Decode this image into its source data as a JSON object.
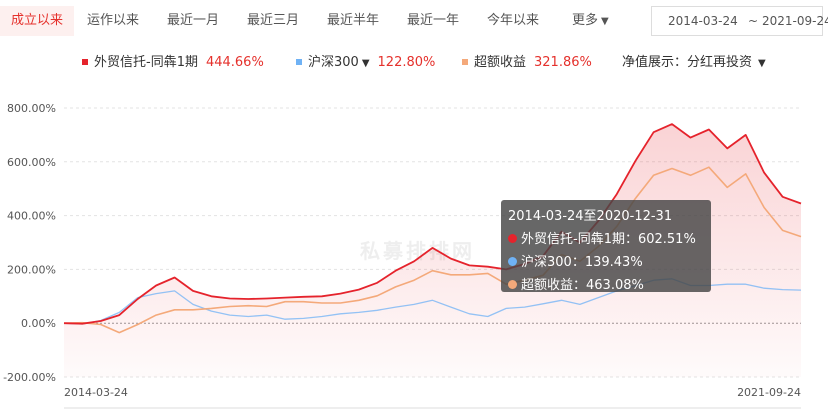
{
  "tabs": [
    {
      "label": "成立以来",
      "active": true
    },
    {
      "label": "运作以来",
      "active": false
    },
    {
      "label": "最近一月",
      "active": false
    },
    {
      "label": "最近三月",
      "active": false
    },
    {
      "label": "最近半年",
      "active": false
    },
    {
      "label": "最近一年",
      "active": false
    },
    {
      "label": "今年以来",
      "active": false
    }
  ],
  "more_label": "更多",
  "date_range": {
    "start": "2014-03-24",
    "separator": "~",
    "end": "2021-09-24"
  },
  "legend": {
    "items": [
      {
        "name": "外贸信托-同犇1期",
        "value": "444.66%",
        "color": "#e5232c",
        "value_color": "#e5312c",
        "has_dropdown": false
      },
      {
        "name": "沪深300",
        "value": "122.80%",
        "color": "#6fb2f5",
        "value_color": "#e5312c",
        "has_dropdown": true
      },
      {
        "name": "超额收益",
        "value": "321.86%",
        "color": "#f4a97a",
        "value_color": "#e5312c",
        "has_dropdown": false
      }
    ],
    "mode_label": "净值展示：",
    "mode_value": "分红再投资"
  },
  "watermark": "私募排排网",
  "tooltip": {
    "title": "2014-03-24至2020-12-31",
    "rows": [
      {
        "label": "外贸信托-同犇1期：",
        "value": "602.51%",
        "color": "#e5232c"
      },
      {
        "label": "沪深300：",
        "value": "139.43%",
        "color": "#6fb2f5"
      },
      {
        "label": "超额收益：",
        "value": "463.08%",
        "color": "#f4a97a"
      }
    ]
  },
  "chart_data": {
    "type": "line",
    "x_start_label": "2014-03-24",
    "x_end_label": "2021-09-24",
    "y_ticks": [
      "800.00%",
      "600.00%",
      "400.00%",
      "200.00%",
      "0.00%",
      "-200.00%"
    ],
    "ylim": [
      -200,
      800
    ],
    "y_unit": "%",
    "crosshair_x": "2020-12-31",
    "x": [
      "2014-03",
      "2014-06",
      "2014-09",
      "2014-12",
      "2015-03",
      "2015-04",
      "2015-05",
      "2015-06",
      "2015-07",
      "2015-08",
      "2015-09",
      "2015-12",
      "2016-03",
      "2016-06",
      "2016-09",
      "2016-12",
      "2017-03",
      "2017-06",
      "2017-09",
      "2017-12",
      "2018-03",
      "2018-06",
      "2018-09",
      "2018-12",
      "2019-03",
      "2019-06",
      "2019-09",
      "2019-12",
      "2020-03",
      "2020-06",
      "2020-09",
      "2020-12",
      "2021-01",
      "2021-02",
      "2021-03",
      "2021-04",
      "2021-05",
      "2021-06",
      "2021-07",
      "2021-08",
      "2021-09"
    ],
    "series": [
      {
        "name": "外贸信托-同犇1期",
        "color": "#e5232c",
        "values": [
          0,
          -2,
          8,
          30,
          90,
          140,
          170,
          120,
          100,
          92,
          90,
          92,
          95,
          98,
          100,
          110,
          125,
          150,
          195,
          230,
          280,
          240,
          215,
          210,
          200,
          220,
          250,
          340,
          300,
          380,
          480,
          602,
          710,
          740,
          690,
          720,
          650,
          700,
          560,
          470,
          445
        ]
      },
      {
        "name": "沪深300",
        "color": "#6fb2f5",
        "values": [
          0,
          -3,
          10,
          40,
          95,
          110,
          120,
          70,
          45,
          30,
          25,
          30,
          15,
          18,
          25,
          35,
          40,
          48,
          60,
          70,
          85,
          60,
          35,
          25,
          55,
          60,
          72,
          85,
          70,
          95,
          120,
          139,
          160,
          165,
          140,
          140,
          145,
          145,
          130,
          125,
          123
        ]
      },
      {
        "name": "超额收益",
        "color": "#f4a97a",
        "values": [
          0,
          2,
          -5,
          -35,
          -5,
          30,
          50,
          50,
          55,
          62,
          65,
          62,
          80,
          80,
          75,
          75,
          85,
          102,
          135,
          160,
          195,
          180,
          180,
          185,
          145,
          160,
          178,
          255,
          230,
          285,
          360,
          463,
          550,
          575,
          550,
          580,
          505,
          555,
          430,
          345,
          322
        ]
      }
    ]
  }
}
